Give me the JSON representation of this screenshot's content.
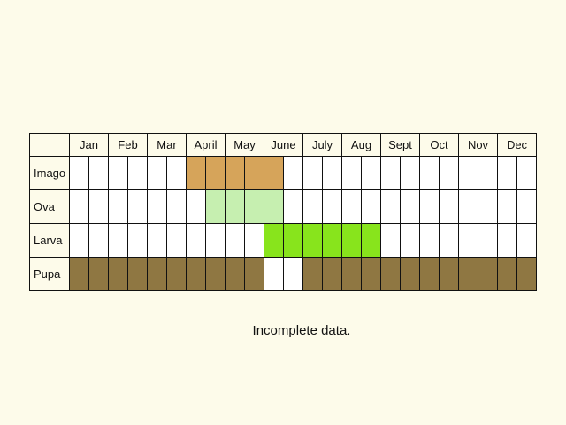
{
  "colors": {
    "background": "#fdfbea",
    "empty": "#ffffff",
    "imago": "#d6a45a",
    "ova": "#c6efb0",
    "larva": "#88e41c",
    "pupa": "#8f7742"
  },
  "months": [
    "Jan",
    "Feb",
    "Mar",
    "April",
    "May",
    "June",
    "July",
    "Aug",
    "Sept",
    "Oct",
    "Nov",
    "Dec"
  ],
  "rows": [
    {
      "label": "Imago",
      "color_key": "imago",
      "filled": [
        0,
        0,
        0,
        0,
        0,
        0,
        0,
        0,
        0,
        0,
        0,
        0,
        0,
        0,
        0,
        0,
        0,
        0,
        0,
        0,
        0,
        0,
        0,
        0
      ],
      "half_periods": [
        7,
        8,
        9,
        10,
        11
      ]
    },
    {
      "label": "Ova",
      "color_key": "ova",
      "half_periods": [
        8,
        9,
        10,
        11
      ]
    },
    {
      "label": "Larva",
      "color_key": "larva",
      "half_periods": [
        11,
        12,
        13,
        14,
        15,
        16
      ]
    },
    {
      "label": "Pupa",
      "color_key": "pupa",
      "half_periods": [
        1,
        2,
        3,
        4,
        5,
        6,
        7,
        8,
        9,
        10,
        13,
        14,
        15,
        16,
        17,
        18,
        19,
        20,
        21,
        22,
        23,
        24
      ]
    }
  ],
  "caption": "Incomplete data."
}
